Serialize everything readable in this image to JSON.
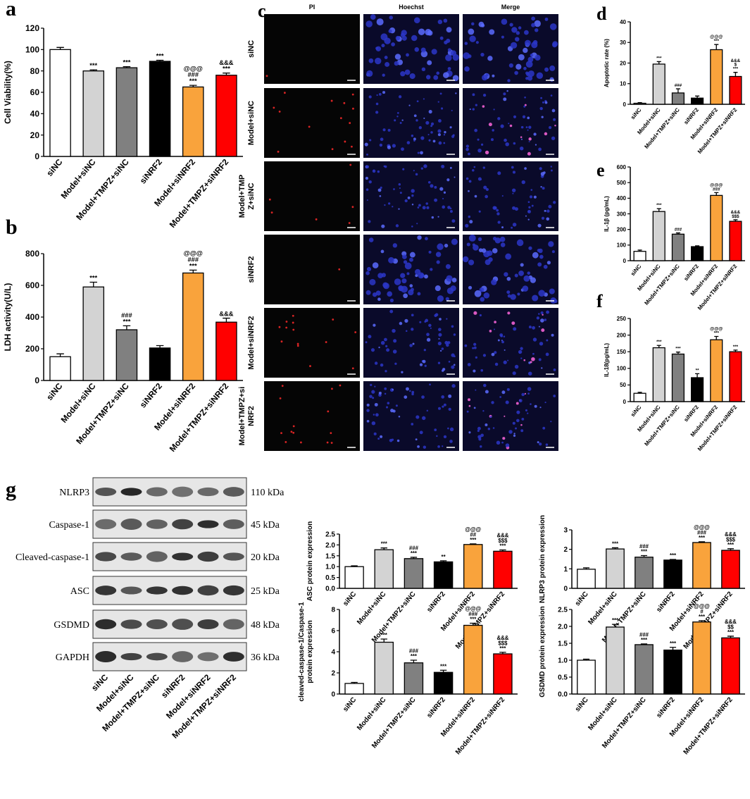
{
  "chart_data": [
    {
      "type": "bar",
      "panel": "a",
      "ylabel": "Cell Viability(%)",
      "categories": [
        "siNC",
        "Model+siNC",
        "Model+TMPZ+siNC",
        "siNRF2",
        "Model+siNRF2",
        "Model+TMPZ+siNRF2"
      ],
      "values": [
        100,
        80,
        83,
        89,
        65,
        76
      ],
      "errors": [
        2,
        1,
        1,
        1,
        1.5,
        2
      ],
      "colors": [
        "#ffffff",
        "#d3d3d3",
        "#808080",
        "#000000",
        "#f9a33c",
        "#ff0000"
      ],
      "annotations": [
        [],
        [
          "***"
        ],
        [
          "***"
        ],
        [
          "***"
        ],
        [
          "@@@",
          "###",
          "***"
        ],
        [
          "&&&",
          "***"
        ]
      ],
      "ylim": [
        0,
        120
      ],
      "yticks": [
        0,
        20,
        40,
        60,
        80,
        100,
        120
      ]
    },
    {
      "type": "bar",
      "panel": "b",
      "ylabel": "LDH activity(U/L)",
      "categories": [
        "siNC",
        "Model+siNC",
        "Model+TMPZ+siNC",
        "siNRF2",
        "Model+siNRF2",
        "Model+TMPZ+siNRF2"
      ],
      "values": [
        150,
        590,
        320,
        205,
        678,
        368
      ],
      "errors": [
        18,
        30,
        25,
        15,
        18,
        25
      ],
      "colors": [
        "#ffffff",
        "#d3d3d3",
        "#808080",
        "#000000",
        "#f9a33c",
        "#ff0000"
      ],
      "annotations": [
        [],
        [
          "***"
        ],
        [
          "###",
          "***"
        ],
        [],
        [
          "@@@",
          "###",
          "***"
        ],
        [
          "&&&"
        ]
      ],
      "ylim": [
        0,
        800
      ],
      "yticks": [
        0,
        200,
        400,
        600,
        800
      ]
    },
    {
      "type": "bar",
      "panel": "d",
      "ylabel": "Apoptotic rate (%)",
      "categories": [
        "siNC",
        "Model+siNC",
        "Model+TMPZ+siNC",
        "siNRF2",
        "Model+siNRF2",
        "Model+TMPZ+siNRF2"
      ],
      "values": [
        0.5,
        19.5,
        5.5,
        3,
        26.5,
        13.5
      ],
      "errors": [
        0.3,
        1.2,
        2,
        1,
        2.5,
        2
      ],
      "colors": [
        "#ffffff",
        "#d3d3d3",
        "#808080",
        "#000000",
        "#f9a33c",
        "#ff0000"
      ],
      "annotations": [
        [],
        [
          "***"
        ],
        [
          "###"
        ],
        [],
        [
          "@@@",
          "***"
        ],
        [
          "&&&",
          "$",
          "***"
        ]
      ],
      "ylim": [
        0,
        40
      ],
      "yticks": [
        0,
        10,
        20,
        30,
        40
      ]
    },
    {
      "type": "bar",
      "panel": "e",
      "ylabel": "IL-1β (pg/mL)",
      "categories": [
        "siNC",
        "Model+siNC",
        "Model+TMPZ+siNC",
        "siNRF2",
        "Model+siNRF2",
        "Model+TMPZ+siNRF2"
      ],
      "values": [
        60,
        315,
        170,
        90,
        418,
        252
      ],
      "errors": [
        8,
        18,
        8,
        5,
        18,
        10
      ],
      "colors": [
        "#ffffff",
        "#d3d3d3",
        "#808080",
        "#000000",
        "#f9a33c",
        "#ff0000"
      ],
      "annotations": [
        [],
        [
          "***"
        ],
        [
          "###"
        ],
        [],
        [
          "@@@",
          "###"
        ],
        [
          "&&&",
          "$$$"
        ]
      ],
      "ylim": [
        0,
        600
      ],
      "yticks": [
        0,
        100,
        200,
        300,
        400,
        500,
        600
      ]
    },
    {
      "type": "bar",
      "panel": "f",
      "ylabel": "IL-18(pg/mL)",
      "categories": [
        "siNC",
        "Model+siNC",
        "Model+TMPZ+siNC",
        "siNRF2",
        "Model+siNRF2",
        "Model+TMPZ+siNRF2"
      ],
      "values": [
        25,
        162,
        143,
        72,
        186,
        150
      ],
      "errors": [
        3,
        7,
        6,
        12,
        10,
        5
      ],
      "colors": [
        "#ffffff",
        "#d3d3d3",
        "#808080",
        "#000000",
        "#f9a33c",
        "#ff0000"
      ],
      "annotations": [
        [],
        [
          "***"
        ],
        [
          "***"
        ],
        [
          "**"
        ],
        [
          "@@@",
          "***"
        ],
        [
          "***"
        ]
      ],
      "ylim": [
        0,
        250
      ],
      "yticks": [
        0,
        50,
        100,
        150,
        200,
        250
      ]
    },
    {
      "type": "bar",
      "ylabel": "ASC protein expression",
      "categories": [
        "siNC",
        "Model+siNC",
        "Model+TMPZ+siNC",
        "siNRF2",
        "Model+siNRF2",
        "Model+TMPZ+siNRF2"
      ],
      "values": [
        1.0,
        1.78,
        1.37,
        1.22,
        2.02,
        1.71
      ],
      "errors": [
        0.04,
        0.08,
        0.06,
        0.05,
        0.03,
        0.06
      ],
      "colors": [
        "#ffffff",
        "#d3d3d3",
        "#808080",
        "#000000",
        "#f9a33c",
        "#ff0000"
      ],
      "annotations": [
        [],
        [
          "***"
        ],
        [
          "###",
          "***"
        ],
        [
          "**"
        ],
        [
          "@@@",
          "##",
          "***"
        ],
        [
          "&&&",
          "$$$",
          "***"
        ]
      ],
      "ylim": [
        0,
        2.5
      ],
      "yticks": [
        {
          "value": 0,
          "label": "0.0"
        },
        0.5,
        {
          "value": 1,
          "label": "1.0"
        },
        1.5,
        {
          "value": 2,
          "label": "2.0"
        },
        2.5
      ]
    },
    {
      "type": "bar",
      "ylabel": "NLRP3 protein expression",
      "categories": [
        "siNC",
        "Model+siNC",
        "Model+TMPZ+siNC",
        "siNRF2",
        "Model+siNRF2",
        "Model+TMPZ+siNRF2"
      ],
      "values": [
        0.98,
        2.02,
        1.6,
        1.45,
        2.35,
        1.95
      ],
      "errors": [
        0.07,
        0.06,
        0.08,
        0.03,
        0.04,
        0.08
      ],
      "colors": [
        "#ffffff",
        "#d3d3d3",
        "#808080",
        "#000000",
        "#f9a33c",
        "#ff0000"
      ],
      "annotations": [
        [],
        [
          "***"
        ],
        [
          "###",
          "***"
        ],
        [
          "***"
        ],
        [
          "@@@",
          "###",
          "***"
        ],
        [
          "&&&",
          "$$$",
          "***"
        ]
      ],
      "ylim": [
        0,
        3
      ],
      "yticks": [
        0,
        1,
        2,
        3
      ]
    },
    {
      "type": "bar",
      "ylabel": [
        "cleaved-caspase-1/Caspase-1",
        "protein expression"
      ],
      "categories": [
        "siNC",
        "Model+siNC",
        "Model+TMPZ+siNC",
        "siNRF2",
        "Model+siNRF2",
        "Model+TMPZ+siNRF2"
      ],
      "values": [
        1.0,
        4.9,
        2.95,
        2.05,
        6.5,
        3.8
      ],
      "errors": [
        0.1,
        0.3,
        0.25,
        0.2,
        0.2,
        0.15
      ],
      "colors": [
        "#ffffff",
        "#d3d3d3",
        "#808080",
        "#000000",
        "#f9a33c",
        "#ff0000"
      ],
      "annotations": [
        [],
        [
          "***"
        ],
        [
          "###",
          "***"
        ],
        [
          "***"
        ],
        [
          "@@@",
          "###",
          "***"
        ],
        [
          "&&&",
          "$$$",
          "***"
        ]
      ],
      "ylim": [
        0,
        8
      ],
      "yticks": [
        0,
        2,
        4,
        6,
        8
      ]
    },
    {
      "type": "bar",
      "ylabel": "GSDMD protein expression",
      "categories": [
        "siNC",
        "Model+siNC",
        "Model+TMPZ+siNC",
        "siNRF2",
        "Model+siNRF2",
        "Model+TMPZ+siNRF2"
      ],
      "values": [
        1.0,
        1.98,
        1.46,
        1.3,
        2.13,
        1.66
      ],
      "errors": [
        0.03,
        0.08,
        0.02,
        0.08,
        0.04,
        0.05
      ],
      "colors": [
        "#ffffff",
        "#d3d3d3",
        "#808080",
        "#000000",
        "#f9a33c",
        "#ff0000"
      ],
      "annotations": [
        [],
        [
          "***"
        ],
        [
          "###",
          "***"
        ],
        [
          "***"
        ],
        [
          "@@@",
          "#",
          "***"
        ],
        [
          "&&&",
          "$$",
          "***"
        ]
      ],
      "ylim": [
        0,
        2.5
      ],
      "yticks": [
        {
          "value": 0,
          "label": "0.0"
        },
        0.5,
        {
          "value": 1,
          "label": "1.0"
        },
        1.5,
        {
          "value": 2,
          "label": "2.0"
        },
        2.5
      ]
    }
  ],
  "microscopy": {
    "panel": "c",
    "columns": [
      "PI",
      "Hoechst",
      "Merge"
    ],
    "rows": [
      [
        "siNC"
      ],
      [
        "Model+siNC"
      ],
      [
        "Model+TMP",
        "Z+siNC"
      ],
      [
        "siNRF2"
      ],
      [
        "Model+siNRF2"
      ],
      [
        "Model+TMPZ+si",
        "NRF2"
      ]
    ]
  },
  "western_blot": {
    "panel": "g",
    "proteins": [
      "NLRP3",
      "Caspase-1",
      "Cleaved-caspase-1",
      "ASC",
      "GSDMD",
      "GAPDH"
    ],
    "sizes": [
      "110 kDa",
      "45 kDa",
      "20 kDa",
      "25 kDa",
      "48 kDa",
      "36 kDa"
    ],
    "lanes": [
      "siNC",
      "Model+siNC",
      "Model+TMPZ+siNC",
      "siNRF2",
      "Model+siNRF2",
      "Model+TMPZ+siNRF2"
    ]
  }
}
